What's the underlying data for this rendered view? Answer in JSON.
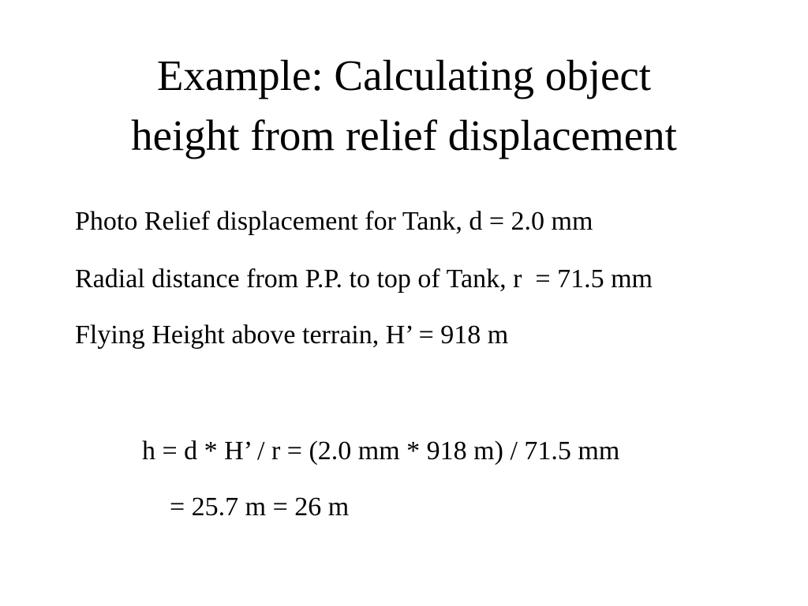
{
  "slide": {
    "background": "#ffffff",
    "text_color": "#000000",
    "title": "Example: Calculating object\nheight from relief displacement",
    "body": {
      "lines": [
        "Photo Relief displacement for Tank, d = 2.0 mm",
        "Radial distance from P.P. to top of Tank, r  = 71.5 mm",
        "Flying Height above terrain, H’ = 918 m"
      ]
    },
    "calculation": {
      "lines": [
        "h = d * H’ / r = (2.0 mm * 918 m) / 71.5 mm",
        "= 25.7 m = 26 m"
      ]
    }
  }
}
